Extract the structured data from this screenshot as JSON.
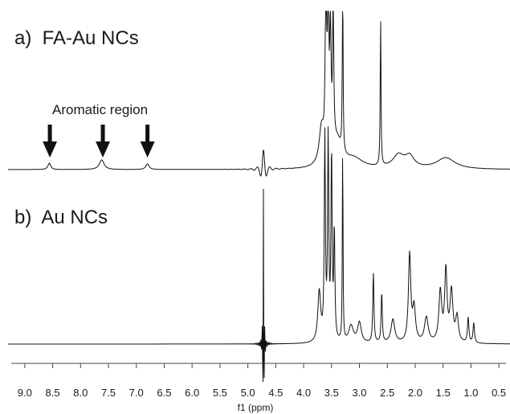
{
  "chart_data": {
    "type": "line",
    "title": "",
    "xlabel": "f1 (ppm)",
    "ylabel": "",
    "x_reversed": true,
    "xlim": [
      9.3,
      0.3
    ],
    "xticks": [
      9.0,
      8.5,
      8.0,
      7.5,
      7.0,
      6.5,
      6.0,
      5.5,
      5.0,
      4.5,
      4.0,
      3.5,
      3.0,
      2.5,
      2.0,
      1.5,
      1.0,
      0.5
    ],
    "xtick_labels": [
      "9.0",
      "8.5",
      "8.0",
      "7.5",
      "7.0",
      "6.5",
      "6.0",
      "5.5",
      "5.0",
      "4.5",
      "4.0",
      "3.5",
      "3.0",
      "2.5",
      "2.0",
      "1.5",
      "1.0",
      "0.5"
    ],
    "grid": false,
    "annotation": {
      "text": "Aromatic region",
      "arrows_at_ppm": [
        8.55,
        7.6,
        6.8
      ]
    },
    "series": [
      {
        "label": "a)  FA-Au NCs",
        "color": "#111111",
        "peaks": [
          {
            "ppm": 8.56,
            "height": 0.04,
            "width": 0.03
          },
          {
            "ppm": 7.62,
            "height": 0.06,
            "width": 0.05
          },
          {
            "ppm": 6.8,
            "height": 0.035,
            "width": 0.035
          },
          {
            "ppm": 4.72,
            "height": 0.12,
            "width": 0.04,
            "dispersive": true
          },
          {
            "ppm": 3.68,
            "height": 0.22,
            "width": 0.05
          },
          {
            "ppm": 3.6,
            "height": 1.1,
            "width": 0.015
          },
          {
            "ppm": 3.56,
            "height": 1.1,
            "width": 0.012
          },
          {
            "ppm": 3.52,
            "height": 0.75,
            "width": 0.015
          },
          {
            "ppm": 3.47,
            "height": 0.9,
            "width": 0.012
          },
          {
            "ppm": 3.3,
            "height": 1.1,
            "width": 0.008
          },
          {
            "ppm": 3.4,
            "height": 0.15,
            "width": 0.1
          },
          {
            "ppm": 3.1,
            "height": 0.06,
            "width": 0.2
          },
          {
            "ppm": 2.62,
            "height": 0.93,
            "width": 0.008
          },
          {
            "ppm": 2.3,
            "height": 0.08,
            "width": 0.12
          },
          {
            "ppm": 2.1,
            "height": 0.07,
            "width": 0.1
          },
          {
            "ppm": 1.45,
            "height": 0.07,
            "width": 0.2
          }
        ]
      },
      {
        "label": "b)  Au NCs",
        "color": "#111111",
        "peaks": [
          {
            "ppm": 4.72,
            "height": 0.95,
            "width": 0.008,
            "dispersive": true
          },
          {
            "ppm": 3.72,
            "height": 0.3,
            "width": 0.03
          },
          {
            "ppm": 3.62,
            "height": 1.2,
            "width": 0.012
          },
          {
            "ppm": 3.56,
            "height": 1.2,
            "width": 0.012
          },
          {
            "ppm": 3.5,
            "height": 1.1,
            "width": 0.012
          },
          {
            "ppm": 3.45,
            "height": 0.65,
            "width": 0.012
          },
          {
            "ppm": 3.3,
            "height": 1.2,
            "width": 0.007
          },
          {
            "ppm": 3.15,
            "height": 0.1,
            "width": 0.05
          },
          {
            "ppm": 3.0,
            "height": 0.12,
            "width": 0.04
          },
          {
            "ppm": 2.75,
            "height": 0.42,
            "width": 0.012
          },
          {
            "ppm": 2.6,
            "height": 0.3,
            "width": 0.012
          },
          {
            "ppm": 2.4,
            "height": 0.14,
            "width": 0.04
          },
          {
            "ppm": 2.1,
            "height": 0.52,
            "width": 0.025
          },
          {
            "ppm": 2.02,
            "height": 0.2,
            "width": 0.03
          },
          {
            "ppm": 1.8,
            "height": 0.15,
            "width": 0.04
          },
          {
            "ppm": 1.55,
            "height": 0.3,
            "width": 0.03
          },
          {
            "ppm": 1.45,
            "height": 0.42,
            "width": 0.025
          },
          {
            "ppm": 1.35,
            "height": 0.3,
            "width": 0.03
          },
          {
            "ppm": 1.25,
            "height": 0.15,
            "width": 0.03
          },
          {
            "ppm": 1.05,
            "height": 0.15,
            "width": 0.015
          },
          {
            "ppm": 0.95,
            "height": 0.12,
            "width": 0.015
          }
        ]
      }
    ]
  }
}
